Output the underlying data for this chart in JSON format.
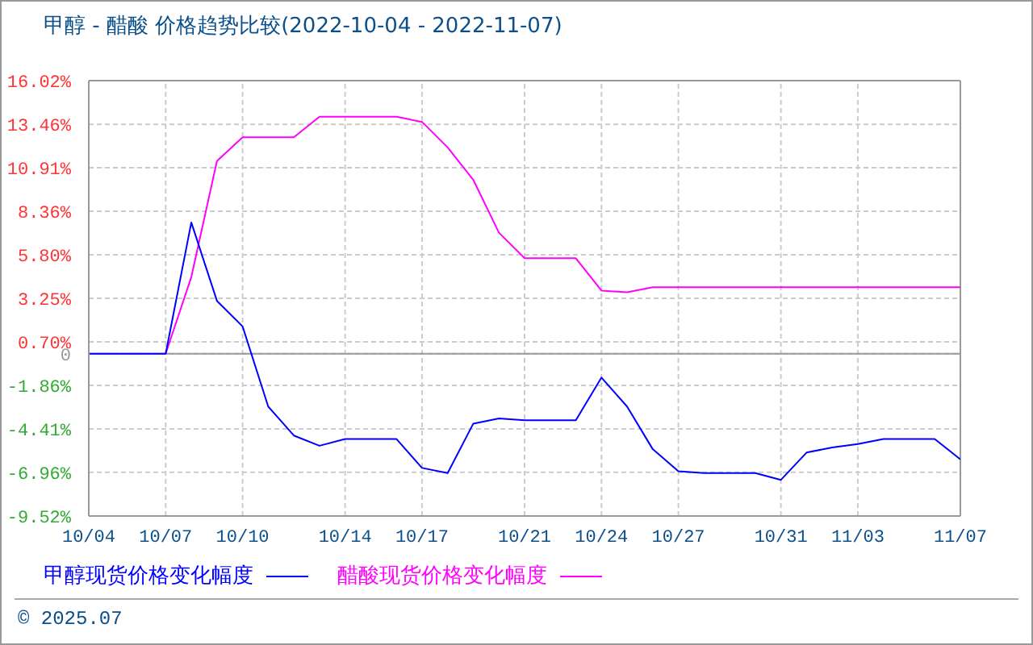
{
  "chart_data": {
    "type": "line",
    "title": "甲醇 - 醋酸 价格趋势比较(2022-10-04 - 2022-11-07)",
    "categories": [
      "10/04",
      null,
      null,
      "10/07",
      null,
      null,
      "10/10",
      null,
      null,
      null,
      "10/14",
      null,
      null,
      "10/17",
      null,
      null,
      null,
      "10/21",
      null,
      null,
      "10/24",
      null,
      null,
      "10/27",
      null,
      null,
      null,
      "10/31",
      null,
      null,
      "11/03",
      null,
      null,
      null,
      "11/07"
    ],
    "series": [
      {
        "name": "醋酸现货价格变化幅度",
        "color": "#ff00ff",
        "values": [
          null,
          null,
          null,
          0,
          4.5,
          11.3,
          12.7,
          12.7,
          12.7,
          13.9,
          13.9,
          13.9,
          13.9,
          13.6,
          12.1,
          10.2,
          7.1,
          5.6,
          5.6,
          5.6,
          3.7,
          3.6,
          3.9,
          3.9,
          3.9,
          3.9,
          3.9,
          3.9,
          3.9,
          3.9,
          3.9,
          3.9,
          3.9,
          3.9,
          3.9
        ]
      },
      {
        "name": "甲醇现货价格变化幅度",
        "color": "#0000ff",
        "values": [
          0,
          0,
          0,
          0,
          7.7,
          3.1,
          1.6,
          -3.1,
          -4.8,
          -5.4,
          -5.0,
          -5.0,
          -5.0,
          -6.7,
          -7.0,
          -4.1,
          -3.8,
          -3.9,
          -3.9,
          -3.9,
          -1.4,
          -3.1,
          -5.6,
          -6.9,
          -7.0,
          -7.0,
          -7.0,
          -7.4,
          -5.8,
          -5.5,
          -5.3,
          -5.0,
          -5.0,
          -5.0,
          -6.2
        ]
      }
    ],
    "ylim": [
      -9.52,
      16.02
    ],
    "yticks": [
      {
        "value": 16.02,
        "label": "16.02%"
      },
      {
        "value": 13.46,
        "label": "13.46%"
      },
      {
        "value": 10.91,
        "label": "10.91%"
      },
      {
        "value": 8.36,
        "label": "8.36%"
      },
      {
        "value": 5.8,
        "label": "5.80%"
      },
      {
        "value": 3.25,
        "label": "3.25%"
      },
      {
        "value": 0.7,
        "label": "0.70%"
      },
      {
        "value": 0,
        "label": "0"
      },
      {
        "value": -1.86,
        "label": "-1.86%"
      },
      {
        "value": -4.41,
        "label": "-4.41%"
      },
      {
        "value": -6.96,
        "label": "-6.96%"
      },
      {
        "value": -9.52,
        "label": "-9.52%"
      }
    ],
    "ref_lines": [
      {
        "axis": "y",
        "value": 0,
        "color": "#999999"
      }
    ],
    "grid": true,
    "legend": "bottom",
    "marker": "none",
    "line_style": "solid",
    "annotations": [
      "© 2025.07"
    ]
  }
}
